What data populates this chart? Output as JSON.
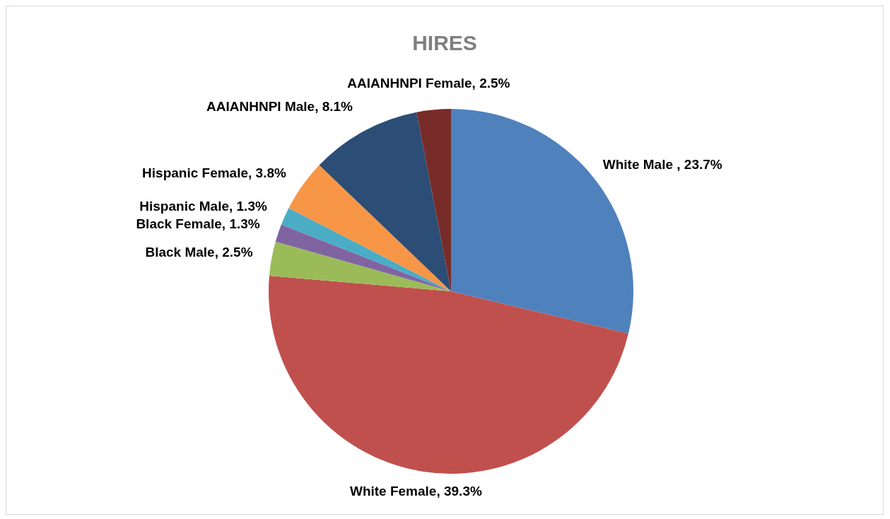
{
  "chart_data": {
    "type": "pie",
    "title": "HIRES",
    "categories": [
      "White Male ",
      "White Female",
      "Black Male",
      "Black Female",
      "Hispanic Male",
      "Hispanic Female",
      "AAIANHNPI Male",
      "AAIANHNPI Female"
    ],
    "values": [
      23.7,
      39.3,
      2.5,
      1.3,
      1.3,
      3.8,
      8.1,
      2.5
    ],
    "value_labels": [
      "23.7%",
      "39.3%",
      "2.5%",
      "1.3%",
      "1.3%",
      "3.8%",
      "8.1%",
      "2.5%"
    ],
    "colors": [
      "#4f81bd",
      "#c0504d",
      "#9bbb59",
      "#8064a2",
      "#4bacc6",
      "#f79646",
      "#2c4d75",
      "#772c2a"
    ],
    "legend": false
  }
}
